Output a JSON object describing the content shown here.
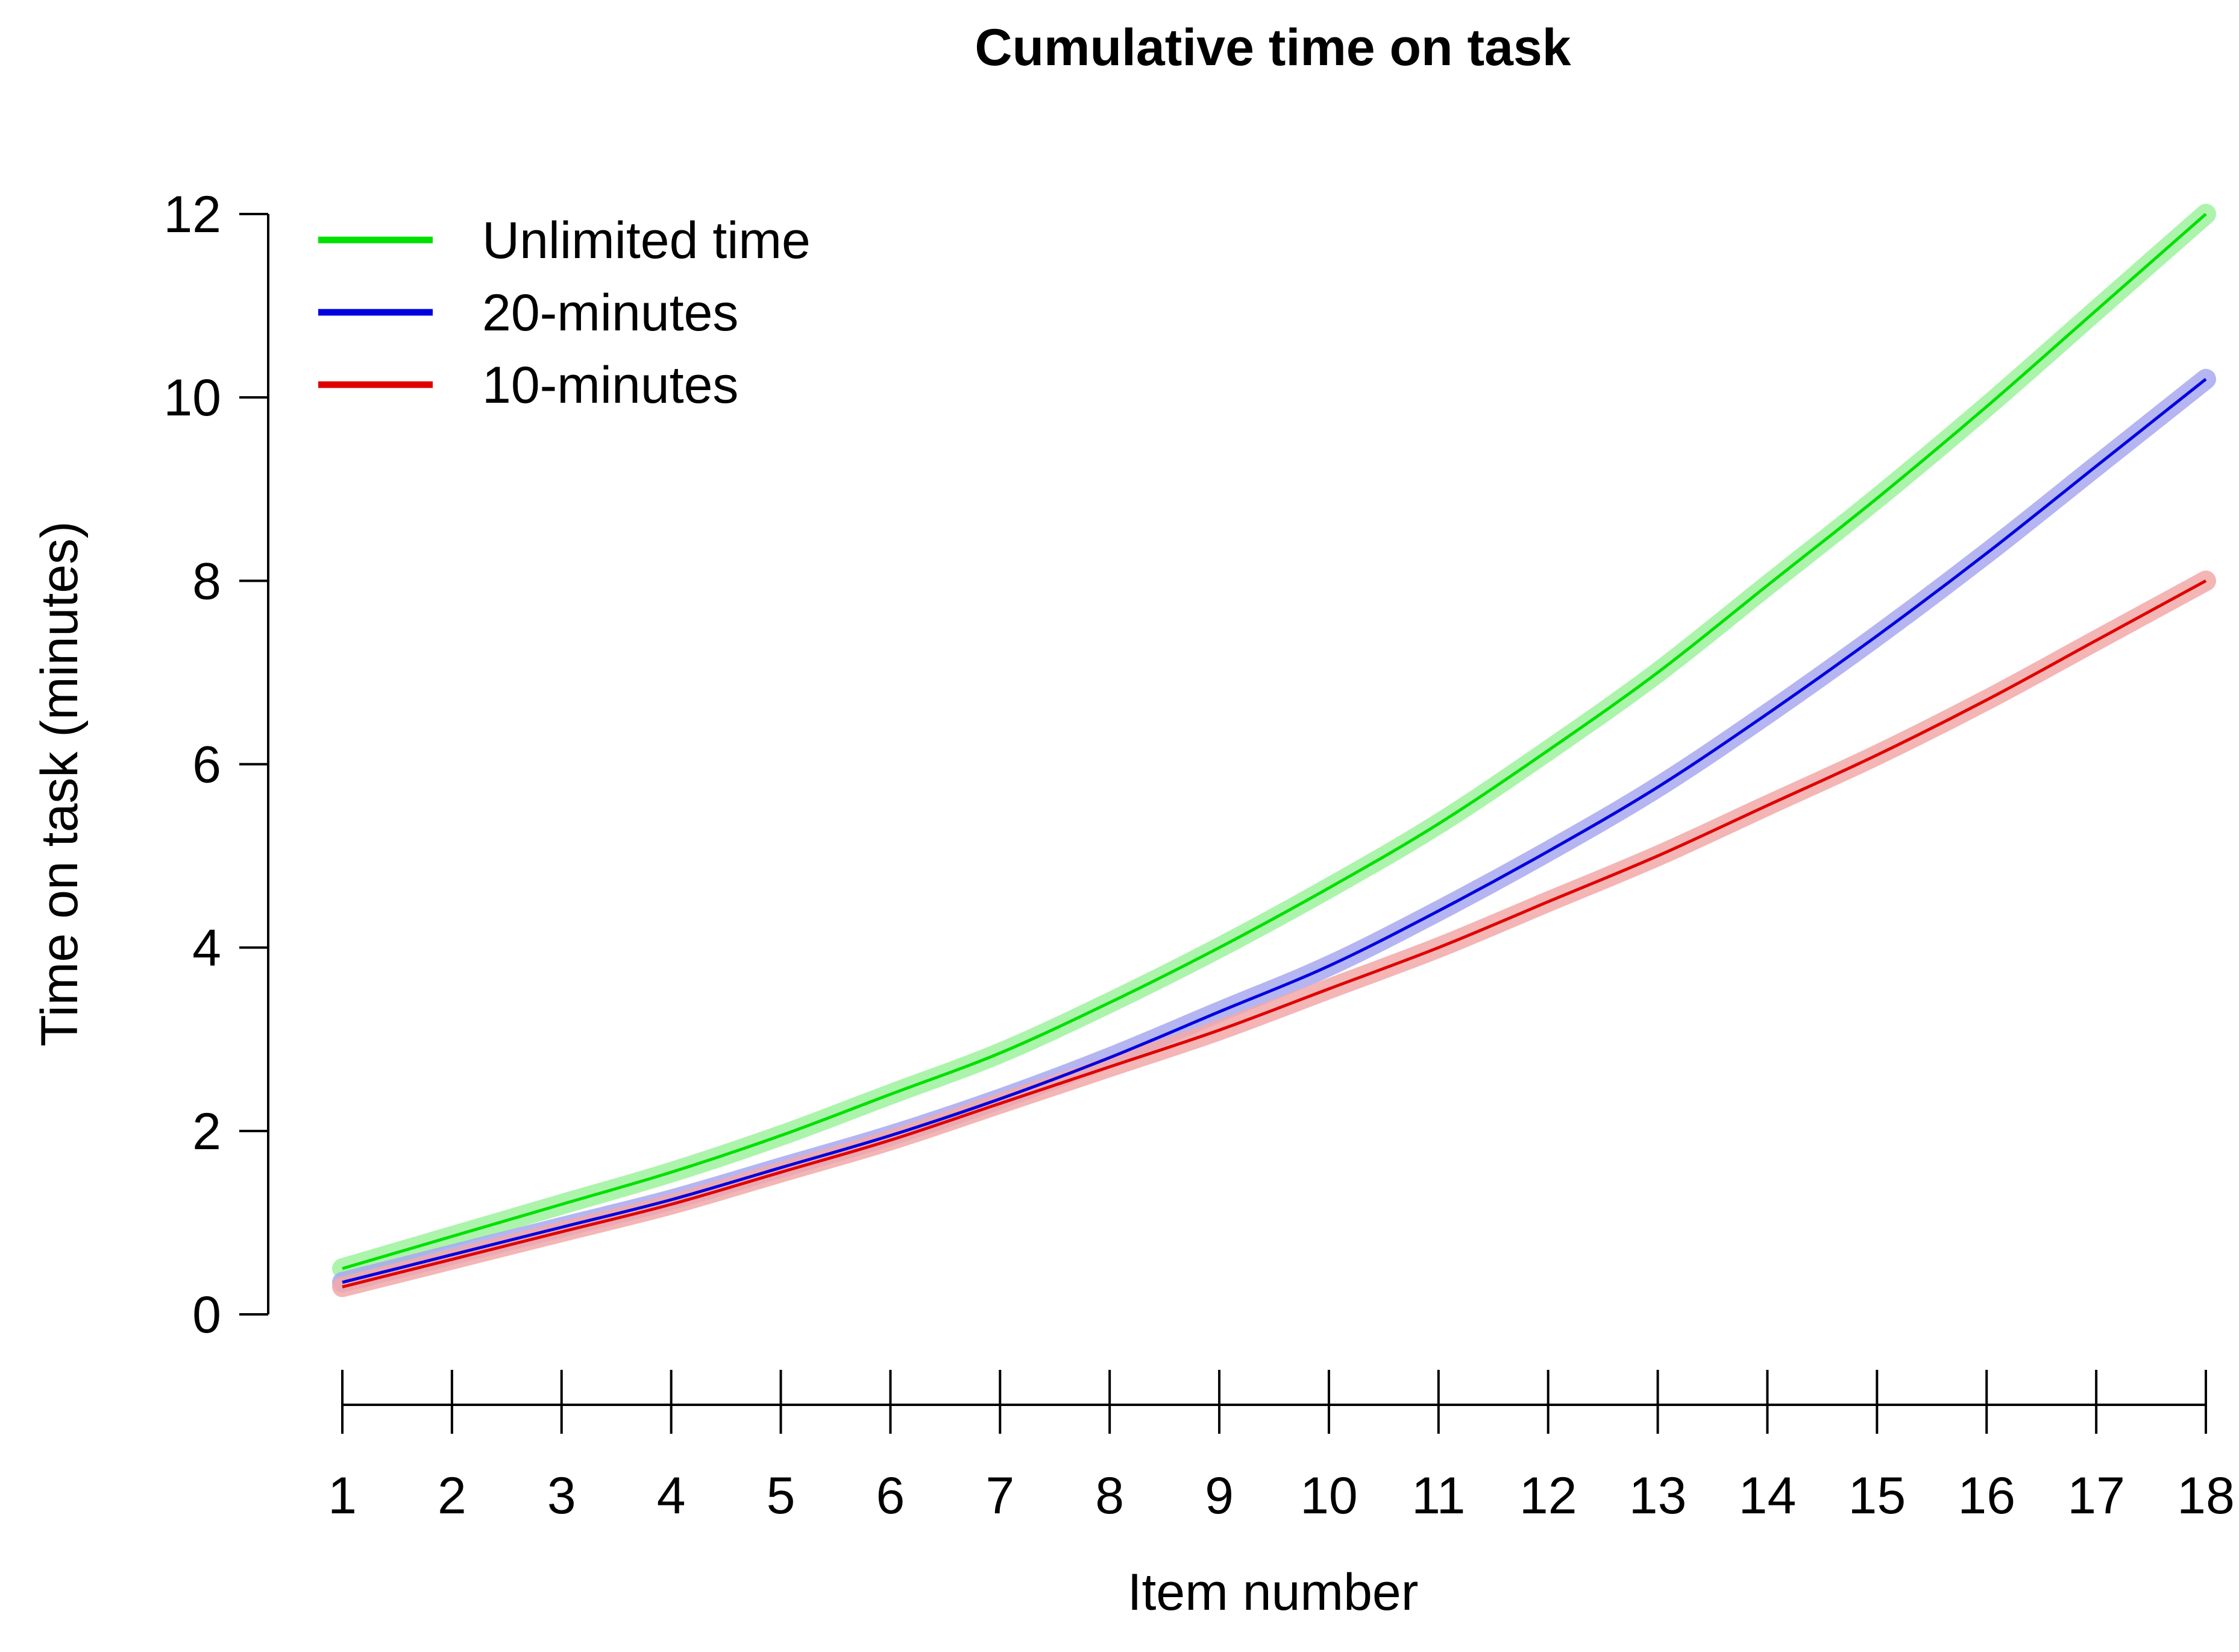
{
  "chart_data": {
    "type": "line",
    "title": "Cumulative time on task",
    "xlabel": "Item number",
    "ylabel": "Time on task (minutes)",
    "xlim": [
      1,
      18
    ],
    "ylim": [
      0,
      12
    ],
    "xticks": [
      "1",
      "2",
      "3",
      "4",
      "5",
      "6",
      "7",
      "8",
      "9",
      "10",
      "11",
      "12",
      "13",
      "14",
      "15",
      "16",
      "17",
      "18"
    ],
    "yticks": [
      "0",
      "2",
      "4",
      "6",
      "8",
      "10",
      "12"
    ],
    "grid": false,
    "legend_position": "top-left",
    "x": [
      1,
      2,
      3,
      4,
      5,
      6,
      7,
      8,
      9,
      10,
      11,
      12,
      13,
      14,
      15,
      16,
      17,
      18
    ],
    "series": [
      {
        "name": "Unlimited time",
        "color": "#00e000",
        "band_color": "#9ef29e",
        "values": [
          0.5,
          0.85,
          1.2,
          1.55,
          1.95,
          2.4,
          2.85,
          3.4,
          4.0,
          4.65,
          5.35,
          6.15,
          7.0,
          7.95,
          8.9,
          9.9,
          10.95,
          12.0
        ]
      },
      {
        "name": "20-minutes",
        "color": "#0000e0",
        "band_color": "#a8a8f0",
        "values": [
          0.35,
          0.65,
          0.95,
          1.25,
          1.6,
          1.95,
          2.35,
          2.8,
          3.3,
          3.8,
          4.4,
          5.05,
          5.75,
          6.55,
          7.4,
          8.3,
          9.25,
          10.2
        ]
      },
      {
        "name": "10-minutes",
        "color": "#e00000",
        "band_color": "#f2a8a8",
        "values": [
          0.3,
          0.6,
          0.9,
          1.2,
          1.55,
          1.9,
          2.3,
          2.7,
          3.1,
          3.55,
          4.0,
          4.5,
          5.0,
          5.55,
          6.1,
          6.7,
          7.35,
          8.0
        ]
      }
    ]
  }
}
